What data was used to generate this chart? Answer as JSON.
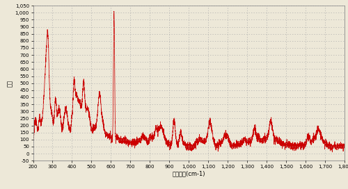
{
  "xlabel": "拉曼選標(cm-1)",
  "ylabel": "計數",
  "xlim": [
    200,
    1800
  ],
  "ylim": [
    -50,
    1050
  ],
  "xticks": [
    200,
    300,
    400,
    500,
    600,
    700,
    800,
    900,
    1000,
    1100,
    1200,
    1300,
    1400,
    1500,
    1600,
    1700,
    1800
  ],
  "yticks": [
    -50,
    0,
    50,
    100,
    150,
    200,
    250,
    300,
    350,
    400,
    450,
    500,
    550,
    600,
    650,
    700,
    750,
    800,
    850,
    900,
    950,
    1000,
    1050
  ],
  "line_color": "#cc0000",
  "bg_color": "#ede8d8",
  "grid_color": "#aaaaaa",
  "spine_color": "#888888",
  "seed": 12345,
  "baseline": 50,
  "noise_std": 12,
  "peaks": [
    [
      213,
      210
    ],
    [
      222,
      60
    ],
    [
      232,
      175
    ],
    [
      242,
      90
    ],
    [
      252,
      175
    ],
    [
      262,
      330
    ],
    [
      272,
      490
    ],
    [
      278,
      340
    ],
    [
      285,
      200
    ],
    [
      295,
      155
    ],
    [
      305,
      110
    ],
    [
      315,
      270
    ],
    [
      325,
      150
    ],
    [
      335,
      190
    ],
    [
      342,
      100
    ],
    [
      352,
      70
    ],
    [
      362,
      195
    ],
    [
      370,
      155
    ],
    [
      378,
      160
    ],
    [
      388,
      95
    ],
    [
      398,
      145
    ],
    [
      410,
      360
    ],
    [
      420,
      265
    ],
    [
      430,
      220
    ],
    [
      440,
      160
    ],
    [
      450,
      250
    ],
    [
      460,
      345
    ],
    [
      470,
      205
    ],
    [
      480,
      240
    ],
    [
      490,
      170
    ],
    [
      500,
      120
    ],
    [
      512,
      115
    ],
    [
      522,
      125
    ],
    [
      532,
      130
    ],
    [
      542,
      355
    ],
    [
      552,
      125
    ],
    [
      560,
      130
    ],
    [
      570,
      90
    ],
    [
      580,
      105
    ],
    [
      590,
      70
    ],
    [
      600,
      105
    ],
    [
      616,
      1000
    ],
    [
      630,
      100
    ],
    [
      640,
      70
    ],
    [
      650,
      60
    ],
    [
      660,
      85
    ],
    [
      670,
      65
    ],
    [
      680,
      80
    ],
    [
      690,
      60
    ],
    [
      700,
      65
    ],
    [
      710,
      58
    ],
    [
      720,
      68
    ],
    [
      730,
      60
    ],
    [
      740,
      75
    ],
    [
      750,
      58
    ],
    [
      760,
      100
    ],
    [
      770,
      80
    ],
    [
      780,
      80
    ],
    [
      790,
      65
    ],
    [
      800,
      95
    ],
    [
      810,
      82
    ],
    [
      820,
      88
    ],
    [
      830,
      130
    ],
    [
      840,
      108
    ],
    [
      852,
      140
    ],
    [
      862,
      118
    ],
    [
      872,
      88
    ],
    [
      882,
      70
    ],
    [
      892,
      60
    ],
    [
      900,
      58
    ],
    [
      912,
      52
    ],
    [
      924,
      225
    ],
    [
      934,
      68
    ],
    [
      945,
      52
    ],
    [
      958,
      135
    ],
    [
      968,
      72
    ],
    [
      978,
      58
    ],
    [
      990,
      50
    ],
    [
      1005,
      52
    ],
    [
      1015,
      50
    ],
    [
      1028,
      55
    ],
    [
      1038,
      68
    ],
    [
      1048,
      72
    ],
    [
      1058,
      78
    ],
    [
      1068,
      65
    ],
    [
      1078,
      72
    ],
    [
      1088,
      58
    ],
    [
      1098,
      52
    ],
    [
      1108,
      215
    ],
    [
      1118,
      72
    ],
    [
      1128,
      58
    ],
    [
      1138,
      55
    ],
    [
      1148,
      48
    ],
    [
      1158,
      62
    ],
    [
      1168,
      55
    ],
    [
      1178,
      78
    ],
    [
      1188,
      98
    ],
    [
      1198,
      88
    ],
    [
      1208,
      60
    ],
    [
      1218,
      52
    ],
    [
      1228,
      55
    ],
    [
      1238,
      58
    ],
    [
      1248,
      55
    ],
    [
      1258,
      57
    ],
    [
      1268,
      62
    ],
    [
      1278,
      72
    ],
    [
      1288,
      78
    ],
    [
      1298,
      68
    ],
    [
      1308,
      62
    ],
    [
      1318,
      78
    ],
    [
      1328,
      72
    ],
    [
      1338,
      152
    ],
    [
      1348,
      88
    ],
    [
      1358,
      78
    ],
    [
      1368,
      78
    ],
    [
      1378,
      70
    ],
    [
      1388,
      78
    ],
    [
      1398,
      78
    ],
    [
      1408,
      65
    ],
    [
      1420,
      200
    ],
    [
      1430,
      90
    ],
    [
      1440,
      75
    ],
    [
      1450,
      78
    ],
    [
      1460,
      72
    ],
    [
      1470,
      65
    ],
    [
      1480,
      58
    ],
    [
      1490,
      55
    ],
    [
      1500,
      58
    ],
    [
      1510,
      55
    ],
    [
      1522,
      58
    ],
    [
      1532,
      52
    ],
    [
      1542,
      48
    ],
    [
      1552,
      55
    ],
    [
      1562,
      50
    ],
    [
      1572,
      58
    ],
    [
      1582,
      55
    ],
    [
      1592,
      55
    ],
    [
      1602,
      58
    ],
    [
      1614,
      118
    ],
    [
      1624,
      68
    ],
    [
      1634,
      78
    ],
    [
      1644,
      78
    ],
    [
      1654,
      98
    ],
    [
      1664,
      128
    ],
    [
      1674,
      108
    ],
    [
      1684,
      80
    ],
    [
      1694,
      68
    ],
    [
      1704,
      64
    ],
    [
      1714,
      52
    ],
    [
      1724,
      55
    ],
    [
      1734,
      48
    ],
    [
      1744,
      46
    ],
    [
      1754,
      42
    ],
    [
      1764,
      42
    ],
    [
      1774,
      42
    ],
    [
      1784,
      42
    ],
    [
      1794,
      42
    ],
    [
      1800,
      42
    ]
  ],
  "peak_widths": {
    "default": 5,
    "616": 3
  }
}
